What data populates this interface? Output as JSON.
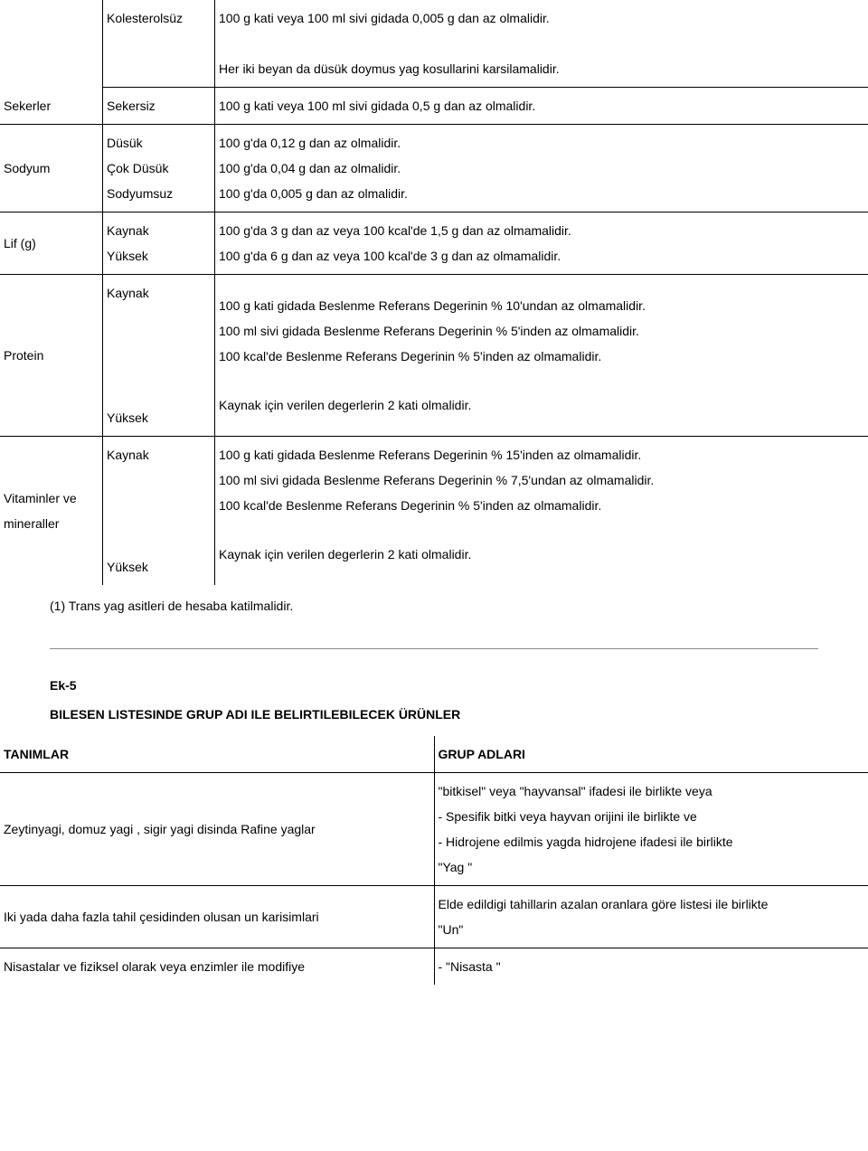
{
  "table1": {
    "r1_c2": "Kolesterolsüz",
    "r1_c3": "100 g kati veya 100 ml sivi gidada 0,005 g dan az olmalidir.\n\nHer iki beyan da düsük doymus yag kosullarini karsilamalidir.",
    "r2_c1": "Sekerler",
    "r2_c2": "Sekersiz",
    "r2_c3": "100 g kati veya 100 ml sivi gidada 0,5 g dan az olmalidir.",
    "r3_c1": "Sodyum",
    "r3_c2": "Düsük\nÇok Düsük\nSodyumsuz",
    "r3_c3": "100 g'da 0,12 g dan az olmalidir.\n100 g'da 0,04 g dan az olmalidir.\n100 g'da 0,005 g dan az olmalidir.",
    "r4_c1": "Lif (g)",
    "r4_c2": "Kaynak\nYüksek",
    "r4_c3": "100 g'da 3 g dan az veya 100 kcal'de 1,5 g dan az olmamalidir.\n100 g'da 6 g dan az veya 100 kcal'de 3 g dan az olmamalidir.",
    "r5_c1": "Protein",
    "r5_c2_top": "Kaynak",
    "r5_c3_top": "100 g kati gidada Beslenme Referans Degerinin % 10'undan az olmamalidir.\n100 ml sivi gidada Beslenme Referans Degerinin % 5'inden az olmamalidir.\n100 kcal'de Beslenme Referans Degerinin % 5'inden az olmamalidir.",
    "r5_c2_bot": "Yüksek",
    "r5_c3_bot": "Kaynak için verilen degerlerin 2 kati olmalidir.",
    "r6_c1": "Vitaminler ve mineraller",
    "r6_c2_top": "Kaynak",
    "r6_c3_top": "100 g kati gidada Beslenme Referans Degerinin % 15'inden az olmamalidir.\n100 ml sivi gidada Beslenme Referans Degerinin % 7,5'undan az olmamalidir.\n100 kcal'de Beslenme Referans Degerinin % 5'inden az olmamalidir.",
    "r6_c2_bot": "Yüksek",
    "r6_c3_bot": "Kaynak için verilen degerlerin 2 kati olmalidir."
  },
  "note1": "(1) Trans yag asitleri de hesaba katilmalidir.",
  "ek5": "Ek-5",
  "ek5_title": "BILESEN LISTESINDE GRUP ADI ILE BELIRTILEBILECEK ÜRÜNLER",
  "table2": {
    "h1": "TANIMLAR",
    "h2": "GRUP ADLARI",
    "r1_c1": "Zeytinyagi, domuz yagi , sigir yagi disinda Rafine yaglar",
    "r1_c2": "\"bitkisel\" veya \"hayvansal\" ifadesi ile birlikte veya\n- Spesifik bitki veya hayvan orijini ile birlikte ve\n- Hidrojene edilmis yagda hidrojene ifadesi ile birlikte\n\"Yag \"",
    "r2_c1": "Iki yada daha fazla tahil çesidinden olusan un karisimlari",
    "r2_c2": "Elde edildigi tahillarin azalan oranlara göre listesi ile birlikte\n\"Un\"",
    "r3_c1": "Nisastalar ve fiziksel olarak veya enzimler ile modifiye",
    "r3_c2": "- \"Nisasta \""
  }
}
